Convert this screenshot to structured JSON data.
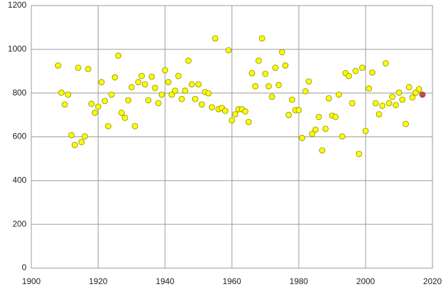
{
  "chart_data": {
    "type": "scatter",
    "x": [
      1908,
      1909,
      1910,
      1911,
      1912,
      1913,
      1914,
      1915,
      1916,
      1917,
      1918,
      1919,
      1920,
      1921,
      1922,
      1923,
      1924,
      1925,
      1926,
      1927,
      1928,
      1929,
      1930,
      1931,
      1932,
      1933,
      1934,
      1935,
      1936,
      1937,
      1938,
      1939,
      1940,
      1941,
      1942,
      1943,
      1944,
      1945,
      1946,
      1947,
      1948,
      1949,
      1950,
      1951,
      1952,
      1953,
      1954,
      1955,
      1956,
      1957,
      1958,
      1959,
      1960,
      1961,
      1962,
      1963,
      1964,
      1965,
      1966,
      1967,
      1968,
      1969,
      1970,
      1971,
      1972,
      1973,
      1974,
      1975,
      1976,
      1977,
      1978,
      1979,
      1980,
      1981,
      1982,
      1983,
      1984,
      1985,
      1986,
      1987,
      1988,
      1989,
      1990,
      1991,
      1992,
      1993,
      1994,
      1995,
      1996,
      1997,
      1998,
      1999,
      2000,
      2001,
      2002,
      2003,
      2004,
      2005,
      2006,
      2007,
      2008,
      2009,
      2010,
      2011,
      2012,
      2013,
      2014,
      2015,
      2016,
      2017
    ],
    "values": [
      926,
      802,
      748,
      793,
      608,
      563,
      916,
      576,
      602,
      910,
      751,
      710,
      738,
      850,
      764,
      649,
      793,
      872,
      971,
      710,
      687,
      767,
      827,
      649,
      850,
      878,
      840,
      767,
      875,
      824,
      754,
      793,
      904,
      850,
      793,
      811,
      878,
      773,
      811,
      948,
      840,
      773,
      840,
      748,
      805,
      799,
      735,
      1050,
      726,
      732,
      719,
      996,
      675,
      703,
      726,
      726,
      716,
      668,
      891,
      831,
      948,
      1050,
      888,
      831,
      783,
      916,
      837,
      987,
      926,
      700,
      770,
      722,
      722,
      595,
      808,
      853,
      614,
      633,
      691,
      538,
      637,
      776,
      697,
      691,
      793,
      602,
      891,
      878,
      754,
      901,
      522,
      916,
      627,
      821,
      894,
      754,
      703,
      742,
      936,
      754,
      783,
      745,
      802,
      770,
      659,
      827,
      780,
      802,
      818,
      793
    ],
    "color": "#ffff00",
    "last_point_color": "#c0504d",
    "xlim": [
      1900,
      2020
    ],
    "xticks": [
      1900,
      1920,
      1940,
      1960,
      1980,
      2000,
      2020
    ],
    "ylim": [
      0,
      1200
    ],
    "yticks": [
      0,
      200,
      400,
      600,
      800,
      1000,
      1200
    ],
    "grid": true
  }
}
